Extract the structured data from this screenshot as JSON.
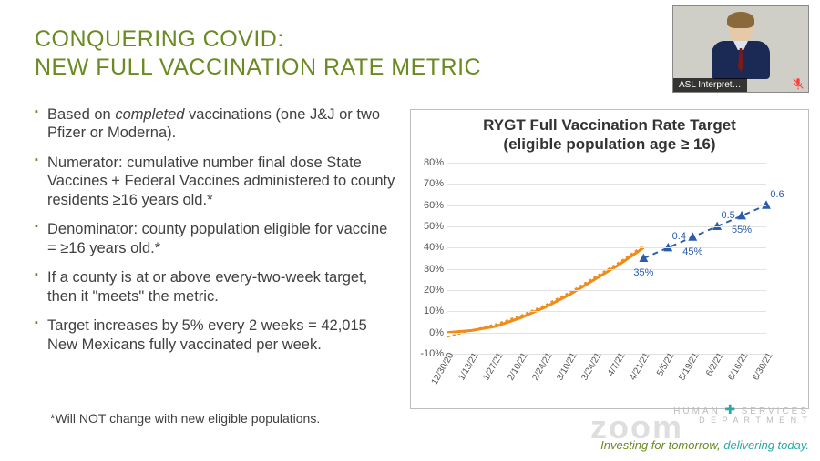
{
  "title": {
    "line1": "CONQUERING COVID:",
    "line2": "NEW FULL VACCINATION RATE METRIC",
    "color": "#6a8a22",
    "fontsize": 25
  },
  "bullets": [
    {
      "pre": "Based on ",
      "em": "completed",
      "post": " vaccinations (one J&J or two Pfizer or Moderna)."
    },
    {
      "pre": "Numerator: cumulative number final dose State Vaccines + Federal Vaccines administered to county residents ≥16 years old.*",
      "em": "",
      "post": ""
    },
    {
      "pre": "Denominator: county population eligible for vaccine = ≥16 years old.*",
      "em": "",
      "post": ""
    },
    {
      "pre": "If a county is at or above every-two-week target, then it \"meets\" the metric.",
      "em": "",
      "post": ""
    },
    {
      "pre": "Target increases by 5% every 2 weeks = 42,015 New Mexicans fully vaccinated per week.",
      "em": "",
      "post": ""
    }
  ],
  "footnote": "*Will NOT change with new eligible populations.",
  "chart": {
    "type": "line",
    "title_line1": "RYGT Full Vaccination Rate Target",
    "title_line2": "(eligible population age ≥ 16)",
    "title_fontsize": 17,
    "background": "#ffffff",
    "border_color": "#bdbdbd",
    "grid_color": "#e2e2e2",
    "ylim": [
      -10,
      80
    ],
    "ytick_step": 10,
    "yticks": [
      "-10%",
      "0%",
      "10%",
      "20%",
      "30%",
      "40%",
      "50%",
      "60%",
      "70%",
      "80%"
    ],
    "xlabels": [
      "12/30/20",
      "1/13/21",
      "1/27/21",
      "2/10/21",
      "2/24/21",
      "3/10/21",
      "3/24/21",
      "4/7/21",
      "4/21/21",
      "5/5/21",
      "5/19/21",
      "6/2/21",
      "6/16/21",
      "6/30/21"
    ],
    "actual": {
      "color": "#f08c1a",
      "width": 3,
      "values": [
        0,
        1,
        3,
        7,
        12,
        18,
        25,
        32,
        40,
        null,
        null,
        null,
        null,
        null
      ]
    },
    "target_dotted": {
      "color": "#f08c1a",
      "width": 2,
      "dash": "3,3",
      "values": [
        -2,
        1,
        4,
        8,
        13,
        19,
        26,
        33,
        41,
        null,
        null,
        null,
        null,
        null
      ]
    },
    "projection": {
      "color": "#2a5ca8",
      "width": 2,
      "dash": "6,5",
      "marker": "triangle",
      "marker_size": 9,
      "values": [
        null,
        null,
        null,
        null,
        null,
        null,
        null,
        null,
        35,
        40,
        45,
        50,
        55,
        60
      ],
      "point_labels": [
        "",
        "",
        "",
        "",
        "",
        "",
        "",
        "",
        "35%",
        "0.4",
        "45%",
        "0.5",
        "55%",
        "0.6"
      ],
      "label_color": "#2a5ca8",
      "label_fontsize": 11
    }
  },
  "video": {
    "label": "ASL Interpret…",
    "bg": "#cfcfc7"
  },
  "watermark": "zoom",
  "logo": {
    "line1": "HUMAN",
    "line2": "SERVICES",
    "sub": "D E P A R T M E N T"
  },
  "tagline": {
    "a": "Investing for tomorrow, ",
    "b": "delivering today."
  }
}
